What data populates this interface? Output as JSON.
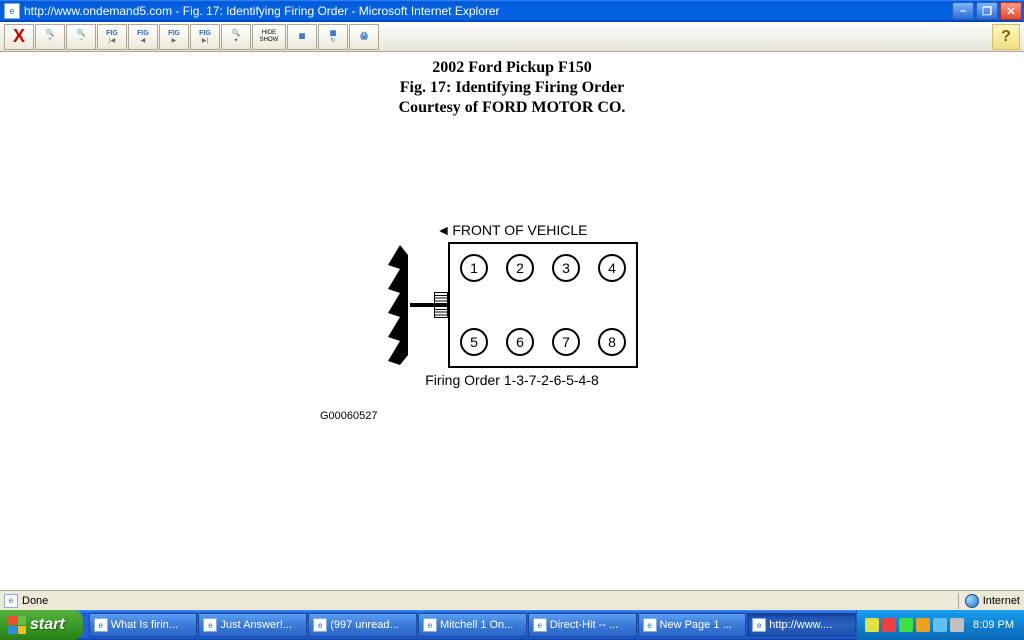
{
  "window": {
    "title": "http://www.ondemand5.com - Fig. 17: Identifying Firing Order - Microsoft Internet Explorer",
    "app_icon_glyph": "e"
  },
  "toolbar": {
    "buttons": [
      {
        "name": "close-x",
        "glyph": "X",
        "cls": "x-btn"
      },
      {
        "name": "zoom-in",
        "fig": "🔍",
        "sub": "+"
      },
      {
        "name": "zoom-out",
        "fig": "🔍",
        "sub": "−"
      },
      {
        "name": "fig-first",
        "fig": "FIG",
        "sub": "|◀"
      },
      {
        "name": "fig-prev",
        "fig": "FIG",
        "sub": "◀"
      },
      {
        "name": "fig-next",
        "fig": "FIG",
        "sub": "▶"
      },
      {
        "name": "fig-last",
        "fig": "FIG",
        "sub": "▶|"
      },
      {
        "name": "zoom-fit",
        "fig": "🔍",
        "sub": "✦"
      },
      {
        "name": "hide-show",
        "line1": "HIDE",
        "line2": "SHOW",
        "cls": "hideshow"
      },
      {
        "name": "tool-a",
        "fig": "▦",
        "sub": ""
      },
      {
        "name": "tool-b",
        "fig": "▦",
        "sub": "↻"
      },
      {
        "name": "print",
        "fig": "🖨",
        "sub": ""
      }
    ],
    "help_glyph": "?"
  },
  "heading": {
    "line1": "2002 Ford Pickup F150",
    "line2": "Fig. 17: Identifying Firing Order",
    "line3": "Courtesy of FORD MOTOR CO."
  },
  "diagram": {
    "front_arrow": "◄",
    "front_label": "FRONT OF VEHICLE",
    "cylinders_top": [
      "1",
      "2",
      "3",
      "4"
    ],
    "cylinders_bottom": [
      "5",
      "6",
      "7",
      "8"
    ],
    "firing_order_label": "Firing Order 1-3-7-2-6-5-4-8",
    "code": "G00060527",
    "colors": {
      "stroke": "#000000",
      "background": "#ffffff"
    }
  },
  "statusbar": {
    "left_text": "Done",
    "zone_text": "Internet"
  },
  "taskbar": {
    "start_label": "start",
    "items": [
      {
        "label": "What Is firin...",
        "active": false
      },
      {
        "label": "Just Answer!...",
        "active": false
      },
      {
        "label": "(997 unread...",
        "active": false
      },
      {
        "label": "Mitchell 1 On...",
        "active": false
      },
      {
        "label": "Direct-Hit -- ...",
        "active": false
      },
      {
        "label": "New Page 1 ...",
        "active": false
      },
      {
        "label": "http://www....",
        "active": true
      }
    ],
    "clock": "8:09 PM"
  }
}
